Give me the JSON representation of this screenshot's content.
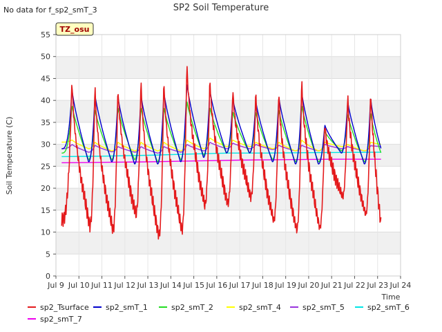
{
  "chart_data": {
    "type": "line",
    "title": "SP2 Soil Temperature",
    "no_data_note": "No data for f_sp2_smT_3",
    "tz_label": "TZ_osu",
    "xlabel": "Time",
    "ylabel": "Soil Temperature (C)",
    "xlim": [
      9,
      24
    ],
    "ylim": [
      0,
      55
    ],
    "xticks": [
      9,
      10,
      11,
      12,
      13,
      14,
      15,
      16,
      17,
      18,
      19,
      20,
      21,
      22,
      23,
      24
    ],
    "xtick_labels": [
      "Jul 9",
      "Jul 10",
      "Jul 11",
      "Jul 12",
      "Jul 13",
      "Jul 14",
      "Jul 15",
      "Jul 16",
      "Jul 17",
      "Jul 18",
      "Jul 19",
      "Jul 20",
      "Jul 21",
      "Jul 22",
      "Jul 23",
      "Jul 24"
    ],
    "yticks": [
      0,
      5,
      10,
      15,
      20,
      25,
      30,
      35,
      40,
      45,
      50,
      55
    ],
    "grid": true,
    "legend_position": "bottom",
    "daily_x": [
      9.7,
      10.7,
      11.7,
      12.7,
      13.7,
      14.7,
      15.7,
      16.7,
      17.7,
      18.7,
      19.7,
      20.7,
      21.7,
      22.7
    ],
    "series": [
      {
        "name": "sp2_Tsurface",
        "color": "#e41a1c",
        "start": 9.25,
        "end": 23.15,
        "start_value": 13,
        "end_value": 11.5,
        "daily_max": [
          46,
          45,
          44.5,
          46.5,
          46.5,
          50.3,
          46.5,
          44,
          43.5,
          44,
          46.5,
          36,
          42.5,
          43
        ],
        "daily_min": [
          11.5,
          10.5,
          14,
          9.2,
          10.5,
          16,
          16.5,
          18,
          12.5,
          10.5,
          11,
          18,
          14,
          12.5
        ]
      },
      {
        "name": "sp2_smT_1",
        "color": "#0000cc",
        "start": 9.25,
        "end": 23.15,
        "start_value": 29,
        "end_value": 29,
        "daily_max": [
          42.5,
          41.5,
          41,
          41.5,
          42,
          44,
          42.5,
          40.5,
          40,
          41,
          42,
          34.5,
          40,
          41
        ],
        "daily_min": [
          26,
          26,
          25.5,
          25.5,
          26,
          27,
          28,
          28,
          26,
          25.5,
          25.5,
          28,
          25.5,
          26
        ]
      },
      {
        "name": "sp2_smT_2",
        "color": "#22dd22",
        "start": 9.25,
        "end": 23.15,
        "start_value": 28,
        "end_value": 28,
        "daily_max": [
          39,
          38,
          38.5,
          38.5,
          38.5,
          40,
          38.5,
          37.5,
          37.5,
          38,
          39,
          33,
          37,
          37.5
        ],
        "daily_min": [
          26.5,
          26.5,
          26.5,
          26,
          26.5,
          27.5,
          28,
          28,
          26.5,
          26,
          26,
          28.5,
          26,
          26.5
        ]
      },
      {
        "name": "sp2_smT_4",
        "color": "#ffff00",
        "start": 9.25,
        "end": 23.15,
        "start_value": 30.5,
        "end_value": 30,
        "daily_max": [
          31,
          30.5,
          30.5,
          30.5,
          30.5,
          31,
          31.5,
          31,
          30.5,
          30.5,
          31,
          30.5,
          30,
          30.5
        ],
        "daily_min": [
          29,
          28.5,
          28.5,
          28.5,
          28.5,
          29,
          29.5,
          29.5,
          29,
          28.5,
          28.5,
          29.5,
          28.5,
          28.5
        ]
      },
      {
        "name": "sp2_smT_5",
        "color": "#9933dd",
        "start": 9.25,
        "end": 23.15,
        "start_value": 29,
        "end_value": 29.5,
        "daily_max": [
          30,
          29.8,
          29.5,
          29.5,
          29.5,
          30,
          30.5,
          30.3,
          30,
          29.8,
          29.8,
          30,
          29.5,
          29.7
        ],
        "daily_min": [
          28.2,
          28.3,
          28.2,
          28,
          28.2,
          28.5,
          29,
          29,
          28.8,
          28.5,
          28.5,
          29,
          28.5,
          28.5
        ]
      },
      {
        "name": "sp2_smT_6",
        "color": "#00e5e5",
        "start": 9.25,
        "end": 23.15,
        "start_value": 27.2,
        "end_value": 28.2,
        "flat": [
          [
            9.25,
            27.2
          ],
          [
            11,
            27.3
          ],
          [
            13,
            27.5
          ],
          [
            15,
            27.8
          ],
          [
            16.5,
            28
          ],
          [
            18,
            28
          ],
          [
            20,
            28.1
          ],
          [
            23.15,
            28.2
          ]
        ]
      },
      {
        "name": "sp2_smT_7",
        "color": "#ee00ee",
        "start": 9.25,
        "end": 23.15,
        "start_value": 25.8,
        "end_value": 26.6,
        "flat": [
          [
            9.25,
            25.8
          ],
          [
            11,
            25.9
          ],
          [
            13,
            26.0
          ],
          [
            15,
            26.2
          ],
          [
            17,
            26.4
          ],
          [
            19,
            26.5
          ],
          [
            21,
            26.6
          ],
          [
            23.15,
            26.6
          ]
        ]
      }
    ]
  }
}
